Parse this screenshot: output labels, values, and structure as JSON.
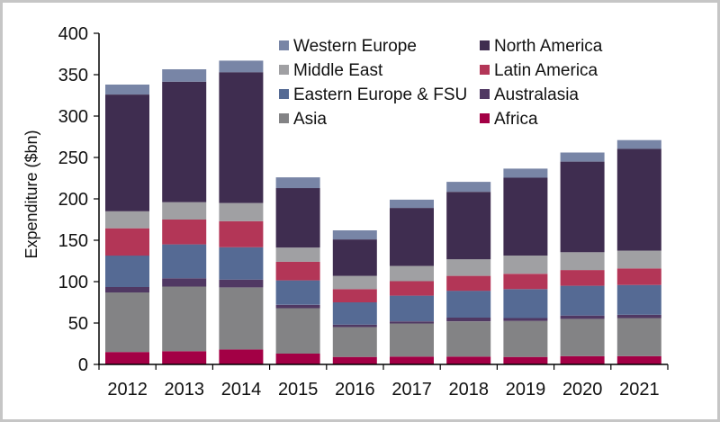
{
  "chart_data": {
    "type": "bar",
    "stacked": true,
    "title": "",
    "xlabel": "",
    "ylabel": "Expenditure ($bn)",
    "ylim": [
      0,
      400
    ],
    "yticks": [
      0,
      50,
      100,
      150,
      200,
      250,
      300,
      350,
      400
    ],
    "grid": false,
    "legend_position": "top-right",
    "categories": [
      "2012",
      "2013",
      "2014",
      "2015",
      "2016",
      "2017",
      "2018",
      "2019",
      "2020",
      "2021"
    ],
    "series": [
      {
        "name": "Africa",
        "color": "#A30045",
        "values": [
          15,
          16,
          18,
          13,
          9,
          9.5,
          9.5,
          9,
          10,
          10
        ]
      },
      {
        "name": "Asia",
        "color": "#838385",
        "values": [
          72,
          78,
          75,
          55,
          36,
          40,
          42.5,
          43.5,
          45,
          46
        ]
      },
      {
        "name": "Australasia",
        "color": "#503863",
        "values": [
          6.5,
          10,
          9.5,
          4,
          3,
          2.5,
          4.5,
          3.5,
          4,
          4
        ]
      },
      {
        "name": "Eastern Europe & FSU",
        "color": "#556A94",
        "values": [
          38,
          41,
          39,
          29.5,
          27,
          31,
          32.5,
          35,
          36,
          36
        ]
      },
      {
        "name": "Latin America",
        "color": "#B33657",
        "values": [
          33,
          30,
          31.5,
          22.5,
          16,
          17.5,
          18,
          18.5,
          19,
          20
        ]
      },
      {
        "name": "Middle East",
        "color": "#A0A0A3",
        "values": [
          20.5,
          21,
          22,
          17,
          16,
          18.5,
          20,
          22,
          21.5,
          21.5
        ]
      },
      {
        "name": "North America",
        "color": "#3F2D50",
        "values": [
          141,
          145.5,
          158,
          72,
          44,
          70,
          81.5,
          94,
          109.5,
          123
        ]
      },
      {
        "name": "Western Europe",
        "color": "#7885A6",
        "values": [
          12,
          15,
          14,
          13,
          11,
          10,
          12,
          11,
          11,
          10.5
        ]
      }
    ],
    "legend_order": [
      "Western Europe",
      "North America",
      "Middle East",
      "Latin America",
      "Eastern Europe & FSU",
      "Australasia",
      "Asia",
      "Africa"
    ]
  }
}
